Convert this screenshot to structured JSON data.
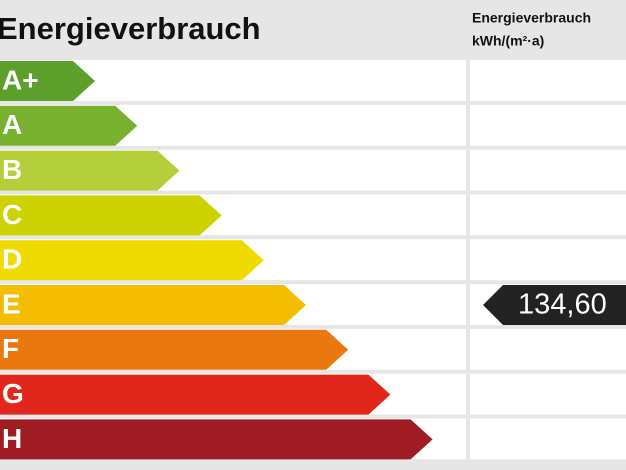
{
  "header": {
    "title": "Energieverbrauch",
    "column_title": "Energieverbrauch",
    "column_unit": "kWh/(m²·a)"
  },
  "classes": [
    {
      "label": "A+",
      "color": "#5c9f2b"
    },
    {
      "label": "A",
      "color": "#78b12e"
    },
    {
      "label": "B",
      "color": "#b4cf3a"
    },
    {
      "label": "C",
      "color": "#cdd300"
    },
    {
      "label": "D",
      "color": "#efdb00"
    },
    {
      "label": "E",
      "color": "#f4bd00",
      "indicator": "134,60"
    },
    {
      "label": "F",
      "color": "#eb780e"
    },
    {
      "label": "G",
      "color": "#e1261c"
    },
    {
      "label": "H",
      "color": "#a01c24"
    }
  ]
}
